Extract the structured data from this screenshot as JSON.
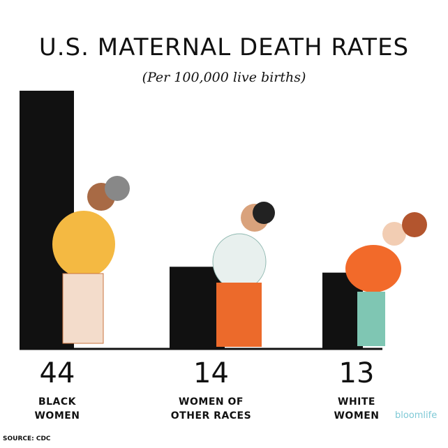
{
  "chart_data": {
    "type": "bar",
    "title": "U.S. MATERNAL DEATH RATES",
    "subtitle": "(Per 100,000 live births)",
    "categories": [
      "BLACK WOMEN",
      "WOMEN OF OTHER RACES",
      "WHITE WOMEN"
    ],
    "values": [
      44,
      14,
      13
    ],
    "color": "#111111",
    "source": "SOURCE: CDC",
    "brand": "bloomlife"
  }
}
